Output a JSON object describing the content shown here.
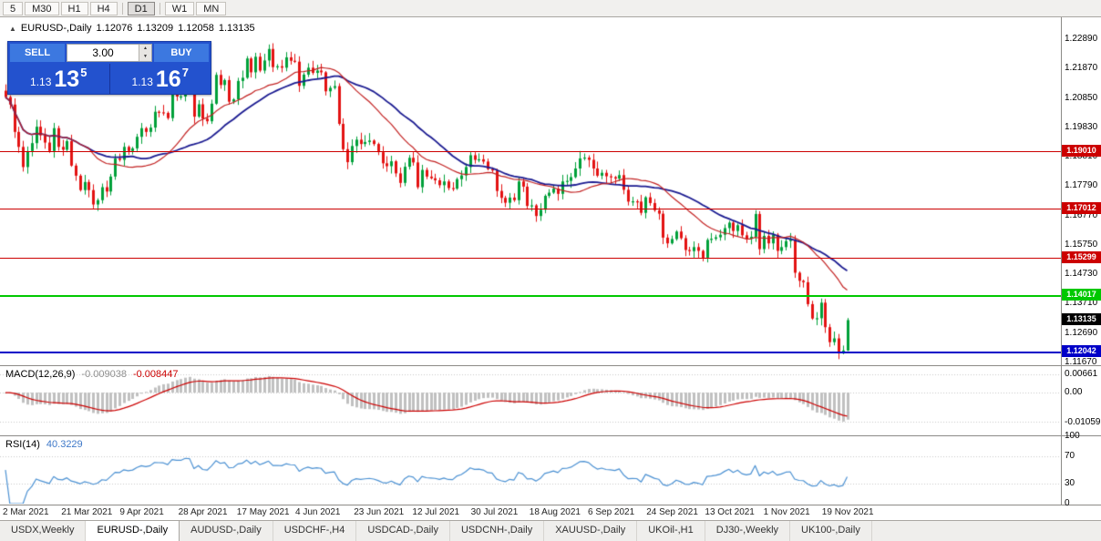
{
  "toolbar": {
    "timeframes": [
      "5",
      "M30",
      "H1",
      "H4",
      "|",
      "D1",
      "|",
      "W1",
      "MN"
    ],
    "active": "D1"
  },
  "chart_header": {
    "collapse_icon": "▲",
    "symbol_label": "EURUSD-,Daily",
    "open": "1.12076",
    "high": "1.13209",
    "low": "1.12058",
    "close": "1.13135"
  },
  "trade_panel": {
    "sell_label": "SELL",
    "buy_label": "BUY",
    "volume": "3.00",
    "spinner_up_icon": "▲",
    "spinner_down_icon": "▼",
    "sell_price": {
      "prefix": "1.13",
      "big": "13",
      "sup": "5"
    },
    "buy_price": {
      "prefix": "1.13",
      "big": "16",
      "sup": "7"
    }
  },
  "price_axis": {
    "ticks": [
      "1.22890",
      "1.21870",
      "1.20850",
      "1.19830",
      "1.18810",
      "1.17790",
      "1.16770",
      "1.15750",
      "1.14730",
      "1.13710",
      "1.12690",
      "1.11670"
    ]
  },
  "levels": [
    {
      "label": "1.19010",
      "price": 1.1901,
      "color": "#CC0000",
      "weight": 1
    },
    {
      "label": "1.17012",
      "price": 1.17012,
      "color": "#CC0000",
      "weight": 1
    },
    {
      "label": "1.15299",
      "price": 1.15299,
      "color": "#CC0000",
      "weight": 1
    },
    {
      "label": "1.14017",
      "price": 1.14017,
      "color": "#00C800",
      "weight": 2
    },
    {
      "label": "1.12042",
      "price": 1.12042,
      "color": "#0000C8",
      "weight": 2
    }
  ],
  "current_price": {
    "label": "1.13135",
    "price": 1.13135,
    "color": "#000000"
  },
  "macd_panel": {
    "label": "MACD(12,26,9)",
    "value_main": "-0.009038",
    "value_signal": "-0.008447",
    "ticks": [
      {
        "label": "0.00661",
        "value": 0.00661
      },
      {
        "label": "0.00",
        "value": 0
      },
      {
        "label": "-0.01059",
        "value": -0.01059
      }
    ],
    "range_max": 0.0095,
    "range_min": -0.015
  },
  "rsi_panel": {
    "label": "RSI(14)",
    "value": "40.3229",
    "ticks": [
      {
        "label": "100",
        "value": 100
      },
      {
        "label": "70",
        "value": 70
      },
      {
        "label": "30",
        "value": 30
      },
      {
        "label": "0",
        "value": 0
      }
    ],
    "levels": [
      70,
      30
    ],
    "range_max": 100,
    "range_min": 0
  },
  "time_axis": [
    "2 Mar 2021",
    "21 Mar 2021",
    "9 Apr 2021",
    "28 Apr 2021",
    "17 May 2021",
    "4 Jun 2021",
    "23 Jun 2021",
    "12 Jul 2021",
    "30 Jul 2021",
    "18 Aug 2021",
    "6 Sep 2021",
    "24 Sep 2021",
    "13 Oct 2021",
    "1 Nov 2021",
    "19 Nov 2021"
  ],
  "tabs": {
    "items": [
      "USDX,Weekly",
      "EURUSD-,Daily",
      "AUDUSD-,Daily",
      "USDCHF-,H4",
      "USDCAD-,Daily",
      "USDCNH-,Daily",
      "XAUUSD-,Daily",
      "UKOil-,H1",
      "DJ30-,Weekly",
      "UK100-,Daily"
    ],
    "active_index": 1
  },
  "chart_data": {
    "type": "candlestick",
    "symbol": "EURUSD-",
    "timeframe": "Daily",
    "title": "EURUSD-,Daily",
    "price_max": 1.2365,
    "price_min": 1.116,
    "last_candle": {
      "o": 1.12076,
      "h": 1.13209,
      "l": 1.12058,
      "c": 1.13135
    },
    "indicators": {
      "ma_fast": {
        "period": 20,
        "color": "#C22020"
      },
      "ma_slow": {
        "period": 30,
        "color": "#1A1A90"
      },
      "macd": {
        "fast": 12,
        "slow": 26,
        "signal": 9
      },
      "rsi": {
        "period": 14
      }
    },
    "colors": {
      "up": "#00A03A",
      "down": "#E31212",
      "macd_hist": "#C0C0C0",
      "macd_signal": "#CC0000",
      "rsi_line": "#4A90D2"
    },
    "closes": [
      1.2088,
      1.2062,
      1.1967,
      1.1915,
      1.1845,
      1.19,
      1.1928,
      1.1985,
      1.1955,
      1.193,
      1.19,
      1.198,
      1.1915,
      1.1905,
      1.1935,
      1.185,
      1.1815,
      1.1765,
      1.1793,
      1.1765,
      1.1715,
      1.173,
      1.1775,
      1.176,
      1.1812,
      1.1875,
      1.187,
      1.1915,
      1.19,
      1.191,
      1.195,
      1.198,
      1.1967,
      1.1982,
      1.2037,
      1.2035,
      1.2033,
      1.2015,
      1.2097,
      1.209,
      1.209,
      1.2125,
      1.2122,
      1.202,
      1.2063,
      1.2013,
      1.2004,
      1.2065,
      1.2165,
      1.213,
      1.2147,
      1.2072,
      1.208,
      1.2144,
      1.2155,
      1.2222,
      1.2174,
      1.2228,
      1.218,
      1.2215,
      1.2255,
      1.2192,
      1.2195,
      1.219,
      1.2226,
      1.2214,
      1.2211,
      1.2127,
      1.2166,
      1.219,
      1.2172,
      1.218,
      1.2174,
      1.2108,
      1.212,
      1.2126,
      1.1995,
      1.1907,
      1.1862,
      1.1918,
      1.194,
      1.1925,
      1.1932,
      1.1937,
      1.1925,
      1.1897,
      1.1858,
      1.1848,
      1.1865,
      1.1823,
      1.179,
      1.1846,
      1.1877,
      1.1861,
      1.1775,
      1.1835,
      1.1812,
      1.1806,
      1.1799,
      1.1782,
      1.1795,
      1.1772,
      1.177,
      1.1803,
      1.1816,
      1.1845,
      1.1886,
      1.187,
      1.1872,
      1.1864,
      1.1838,
      1.1833,
      1.1762,
      1.1738,
      1.1721,
      1.1739,
      1.173,
      1.1795,
      1.1777,
      1.171,
      1.1712,
      1.1675,
      1.1697,
      1.1745,
      1.1756,
      1.177,
      1.1752,
      1.1795,
      1.1797,
      1.181,
      1.184,
      1.1875,
      1.1878,
      1.187,
      1.184,
      1.1815,
      1.1825,
      1.1813,
      1.181,
      1.1805,
      1.1817,
      1.1766,
      1.1725,
      1.1726,
      1.1725,
      1.1686,
      1.174,
      1.172,
      1.1695,
      1.1683,
      1.16,
      1.158,
      1.1595,
      1.1621,
      1.1598,
      1.1557,
      1.1553,
      1.1567,
      1.1554,
      1.1529,
      1.1592,
      1.1596,
      1.1601,
      1.161,
      1.1633,
      1.1652,
      1.1623,
      1.1643,
      1.1608,
      1.1596,
      1.1603,
      1.1682,
      1.156,
      1.1606,
      1.158,
      1.161,
      1.1554,
      1.1567,
      1.1588,
      1.1593,
      1.1478,
      1.145,
      1.1445,
      1.1369,
      1.1319,
      1.132,
      1.1374,
      1.1289,
      1.1237,
      1.125,
      1.1199,
      1.1208,
      1.13135
    ]
  }
}
